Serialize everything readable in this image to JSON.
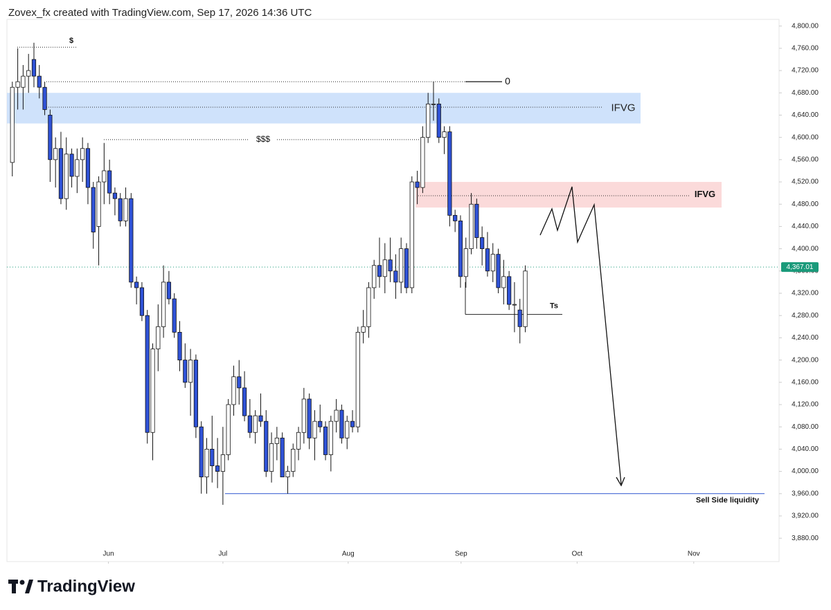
{
  "header": "Zovex_fx created with TradingView.com, Sep 17, 2026 14:36 UTC",
  "footer": "TradingView",
  "chart_data": {
    "type": "candlestick",
    "open": [
      4555,
      4690,
      4690,
      4710,
      4740,
      4710,
      4690,
      4640,
      4560,
      4580,
      4490,
      4570,
      4530,
      4560,
      4580,
      4510,
      4440,
      4520,
      4540,
      4500,
      4490,
      4450,
      4490,
      4340,
      4330,
      4280,
      4070,
      4220,
      4260,
      4340,
      4310,
      4250,
      4200,
      4160,
      4200,
      4080,
      3990,
      4040,
      4010,
      4000,
      4030,
      4120,
      4170,
      4150,
      4100,
      4070,
      4100,
      4090,
      4000,
      4050,
      4060,
      3990,
      4000,
      4040,
      4070,
      4130,
      4060,
      4090,
      4080,
      4030,
      4090,
      4110,
      4060,
      4090,
      4080,
      4250,
      4260,
      4330,
      4370,
      4350,
      4380,
      4360,
      4340,
      4400,
      4330,
      4520,
      4510,
      4600,
      4660,
      4660,
      4600,
      4610,
      4460,
      4450,
      4350,
      4400,
      4480,
      4420,
      4400,
      4360,
      4390,
      4330,
      4350,
      4300,
      4290,
      4260
    ],
    "high": [
      4700,
      4760,
      4730,
      4750,
      4770,
      4730,
      4700,
      4650,
      4600,
      4610,
      4600,
      4580,
      4580,
      4600,
      4590,
      4520,
      4530,
      4590,
      4560,
      4510,
      4500,
      4510,
      4500,
      4350,
      4340,
      4290,
      4230,
      4300,
      4370,
      4360,
      4320,
      4270,
      4230,
      4220,
      4210,
      4090,
      4060,
      4100,
      4060,
      4080,
      4130,
      4190,
      4200,
      4180,
      4130,
      4110,
      4140,
      4110,
      4070,
      4080,
      4070,
      4010,
      4050,
      4080,
      4150,
      4140,
      4110,
      4120,
      4090,
      4100,
      4130,
      4120,
      4100,
      4110,
      4260,
      4290,
      4340,
      4380,
      4420,
      4410,
      4420,
      4390,
      4420,
      4410,
      4530,
      4540,
      4620,
      4680,
      4700,
      4670,
      4620,
      4620,
      4470,
      4460,
      4420,
      4500,
      4490,
      4440,
      4430,
      4410,
      4400,
      4380,
      4360,
      4340,
      4310,
      4370
    ],
    "low": [
      4530,
      4650,
      4650,
      4680,
      4690,
      4670,
      4640,
      4520,
      4510,
      4480,
      4470,
      4510,
      4500,
      4520,
      4480,
      4400,
      4370,
      4480,
      4480,
      4460,
      4440,
      4440,
      4330,
      4300,
      4270,
      4050,
      4020,
      4180,
      4240,
      4300,
      4240,
      4180,
      4150,
      4100,
      4060,
      3960,
      3960,
      3980,
      3970,
      3940,
      4020,
      4100,
      4120,
      4090,
      4060,
      4050,
      4080,
      3990,
      3980,
      4020,
      3990,
      3960,
      3990,
      4020,
      4050,
      4040,
      4020,
      4070,
      4020,
      4000,
      4070,
      4050,
      4040,
      4070,
      4070,
      4230,
      4240,
      4310,
      4330,
      4320,
      4340,
      4310,
      4320,
      4320,
      4320,
      4480,
      4500,
      4590,
      4630,
      4590,
      4570,
      4440,
      4430,
      4330,
      4330,
      4390,
      4400,
      4370,
      4350,
      4340,
      4320,
      4300,
      4290,
      4250,
      4230,
      4250
    ],
    "close": [
      4690,
      4700,
      4710,
      4720,
      4710,
      4690,
      4650,
      4560,
      4580,
      4490,
      4570,
      4530,
      4560,
      4580,
      4510,
      4430,
      4520,
      4540,
      4500,
      4490,
      4450,
      4490,
      4340,
      4330,
      4280,
      4070,
      4220,
      4260,
      4340,
      4310,
      4250,
      4200,
      4160,
      4200,
      4080,
      3990,
      4040,
      4010,
      4000,
      4030,
      4120,
      4170,
      4150,
      4100,
      4070,
      4100,
      4090,
      4000,
      4050,
      4060,
      3990,
      4000,
      4040,
      4070,
      4130,
      4060,
      4090,
      4080,
      4030,
      4090,
      4110,
      4060,
      4090,
      4080,
      4250,
      4260,
      4330,
      4370,
      4350,
      4380,
      4360,
      4340,
      4400,
      4330,
      4520,
      4510,
      4600,
      4660,
      4660,
      4600,
      4610,
      4460,
      4450,
      4350,
      4400,
      4480,
      4420,
      4400,
      4360,
      4390,
      4330,
      4350,
      4300,
      4300,
      4260,
      4360
    ],
    "up_color": "#ffffff",
    "down_color": "#2f52d6",
    "xlim": [
      -1,
      142
    ],
    "xticks": [
      {
        "value": 17.8,
        "label": "Jun"
      },
      {
        "value": 39,
        "label": "Jul"
      },
      {
        "value": 62.2,
        "label": "Aug"
      },
      {
        "value": 83.1,
        "label": "Sep"
      },
      {
        "value": 104.6,
        "label": "Oct"
      },
      {
        "value": 126.2,
        "label": "Nov"
      }
    ],
    "ylim": [
      3838,
      4812
    ],
    "yticks": [
      {
        "value": 3880,
        "label": "3,880.00"
      },
      {
        "value": 3920,
        "label": "3,920.00"
      },
      {
        "value": 3960,
        "label": "3,960.00"
      },
      {
        "value": 4000,
        "label": "4,000.00"
      },
      {
        "value": 4040,
        "label": "4,040.00"
      },
      {
        "value": 4080,
        "label": "4,080.00"
      },
      {
        "value": 4120,
        "label": "4,120.00"
      },
      {
        "value": 4160,
        "label": "4,160.00"
      },
      {
        "value": 4200,
        "label": "4,200.00"
      },
      {
        "value": 4240,
        "label": "4,240.00"
      },
      {
        "value": 4280,
        "label": "4,280.00"
      },
      {
        "value": 4320,
        "label": "4,320.00"
      },
      {
        "value": 4360,
        "label": "4,360.00"
      },
      {
        "value": 4400,
        "label": "4,400.00"
      },
      {
        "value": 4440,
        "label": "4,440.00"
      },
      {
        "value": 4480,
        "label": "4,480.00"
      },
      {
        "value": 4520,
        "label": "4,520.00"
      },
      {
        "value": 4560,
        "label": "4,560.00"
      },
      {
        "value": 4600,
        "label": "4,600.00"
      },
      {
        "value": 4640,
        "label": "4,640.00"
      },
      {
        "value": 4680,
        "label": "4,680.00"
      },
      {
        "value": 4720,
        "label": "4,720.00"
      },
      {
        "value": 4760,
        "label": "4,760.00"
      },
      {
        "value": 4800,
        "label": "4,800.00"
      }
    ],
    "last_price": {
      "value": 4367.01,
      "label": "4,367.01"
    },
    "zones": [
      {
        "label": "IFVG",
        "low": 4625,
        "high": 4680,
        "color": "#cfe2fb"
      },
      {
        "label": "IFVG",
        "low": 4474,
        "high": 4520,
        "color": "#fbdada"
      }
    ],
    "levels": [
      {
        "label": "$",
        "value": 4762
      },
      {
        "label": "0",
        "value": 4700
      },
      {
        "label": "$$$",
        "value": 4596
      },
      {
        "label": "Ts",
        "value": 4282
      },
      {
        "label": "Sell Side liquidity",
        "value": 3960
      }
    ]
  }
}
